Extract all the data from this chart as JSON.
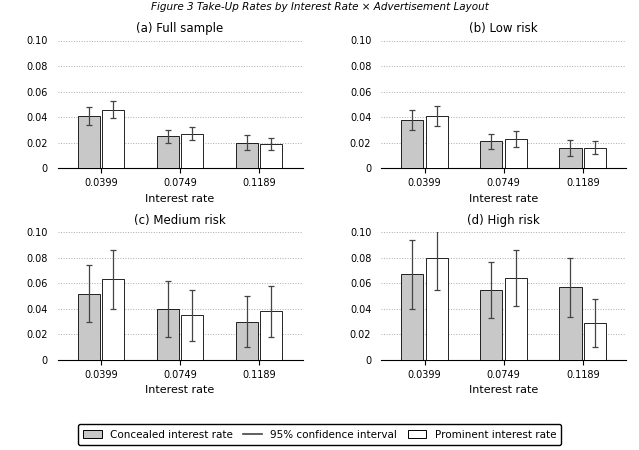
{
  "title": "Figure 3 Take-Up Rates by Interest Rate × Advertisement Layout",
  "subplots": [
    {
      "label": "(a) Full sample",
      "concealed": [
        0.041,
        0.025,
        0.02
      ],
      "prominent": [
        0.046,
        0.027,
        0.019
      ],
      "concealed_ci_lo": [
        0.034,
        0.02,
        0.014
      ],
      "concealed_ci_hi": [
        0.048,
        0.03,
        0.026
      ],
      "prominent_ci_lo": [
        0.039,
        0.022,
        0.014
      ],
      "prominent_ci_hi": [
        0.053,
        0.032,
        0.024
      ]
    },
    {
      "label": "(b) Low risk",
      "concealed": [
        0.038,
        0.021,
        0.016
      ],
      "prominent": [
        0.041,
        0.023,
        0.016
      ],
      "concealed_ci_lo": [
        0.03,
        0.015,
        0.01
      ],
      "concealed_ci_hi": [
        0.046,
        0.027,
        0.022
      ],
      "prominent_ci_lo": [
        0.033,
        0.017,
        0.011
      ],
      "prominent_ci_hi": [
        0.049,
        0.029,
        0.021
      ]
    },
    {
      "label": "(c) Medium risk",
      "concealed": [
        0.052,
        0.04,
        0.03
      ],
      "prominent": [
        0.063,
        0.035,
        0.038
      ],
      "concealed_ci_lo": [
        0.03,
        0.018,
        0.01
      ],
      "concealed_ci_hi": [
        0.074,
        0.062,
        0.05
      ],
      "prominent_ci_lo": [
        0.04,
        0.015,
        0.018
      ],
      "prominent_ci_hi": [
        0.086,
        0.055,
        0.058
      ]
    },
    {
      "label": "(d) High risk",
      "concealed": [
        0.067,
        0.055,
        0.057
      ],
      "prominent": [
        0.08,
        0.064,
        0.029
      ],
      "concealed_ci_lo": [
        0.04,
        0.033,
        0.034
      ],
      "concealed_ci_hi": [
        0.094,
        0.077,
        0.08
      ],
      "prominent_ci_lo": [
        0.055,
        0.042,
        0.01
      ],
      "prominent_ci_hi": [
        0.105,
        0.086,
        0.048
      ]
    }
  ],
  "interest_rates": [
    "0.0399",
    "0.0749",
    "0.1189"
  ],
  "ylim": [
    0,
    0.1
  ],
  "yticks": [
    0,
    0.02,
    0.04,
    0.06,
    0.08,
    0.1
  ],
  "ytick_labels": [
    "0",
    "0.02",
    "0.04",
    "0.06",
    "0.08",
    "0.10"
  ],
  "xlabel": "Interest rate",
  "concealed_color": "#c8c8c8",
  "prominent_color": "#ffffff",
  "bar_edge_color": "#000000",
  "ci_color": "#444444",
  "title_fontsize": 7.5,
  "subplot_title_fontsize": 8.5,
  "tick_fontsize": 7,
  "xlabel_fontsize": 8,
  "legend_fontsize": 7.5
}
